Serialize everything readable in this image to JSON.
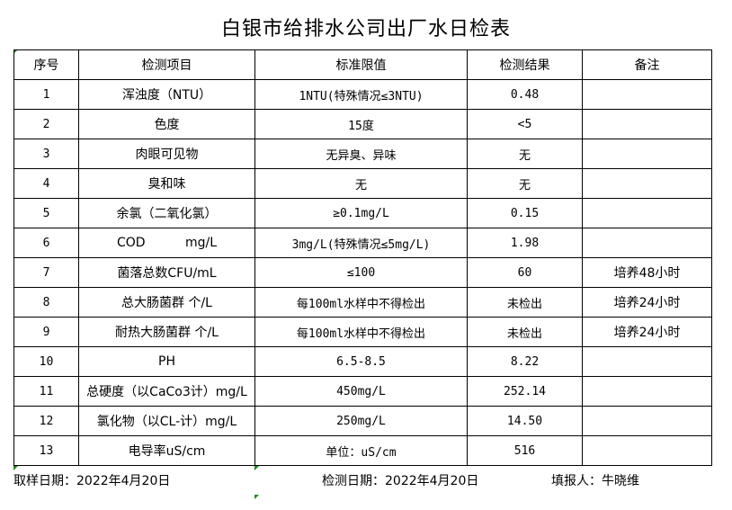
{
  "title": "白银市给排水公司出厂水日检表",
  "table": {
    "headers": [
      "序号",
      "检测项目",
      "标准限值",
      "检测结果",
      "备注"
    ],
    "rows": [
      {
        "no": "1",
        "item": "浑浊度（NTU）",
        "limit": "1NTU(特殊情况≤3NTU)",
        "result": "0.48",
        "note": ""
      },
      {
        "no": "2",
        "item": "色度",
        "limit": "15度",
        "result": "<5",
        "note": ""
      },
      {
        "no": "3",
        "item": "肉眼可见物",
        "limit": "无异臭、异味",
        "result": "无",
        "note": ""
      },
      {
        "no": "4",
        "item": "臭和味",
        "limit": "无",
        "result": "无",
        "note": ""
      },
      {
        "no": "5",
        "item": "余氯（二氧化氯）",
        "limit": "≥0.1mg/L",
        "result": "0.15",
        "note": ""
      },
      {
        "no": "6",
        "item": "COD          mg/L",
        "limit": "3mg/L(特殊情况≤5mg/L)",
        "result": "1.98",
        "note": ""
      },
      {
        "no": "7",
        "item": "菌落总数CFU/mL",
        "limit": "≤100",
        "result": "60",
        "note": "培养48小时"
      },
      {
        "no": "8",
        "item": "总大肠菌群 个/L",
        "limit": "每100ml水样中不得检出",
        "result": "未检出",
        "note": "培养24小时"
      },
      {
        "no": "9",
        "item": "耐热大肠菌群 个/L",
        "limit": "每100ml水样中不得检出",
        "result": "未检出",
        "note": "培养24小时"
      },
      {
        "no": "10",
        "item": "PH",
        "limit": "6.5-8.5",
        "result": "8.22",
        "note": ""
      },
      {
        "no": "11",
        "item": "总硬度（以CaCo3计）mg/L",
        "limit": "450mg/L",
        "result": "252.14",
        "note": ""
      },
      {
        "no": "12",
        "item": "氯化物（以CL-计）mg/L",
        "limit": "250mg/L",
        "result": "14.50",
        "note": ""
      },
      {
        "no": "13",
        "item": "电导率uS/cm",
        "limit": "单位：uS/cm",
        "result": "516",
        "note": ""
      }
    ]
  },
  "footer": {
    "sample_date": "取样日期：2022年4月20日",
    "test_date": "检测日期：2022年4月20日",
    "filled_by": "填报人：牛晓维"
  }
}
